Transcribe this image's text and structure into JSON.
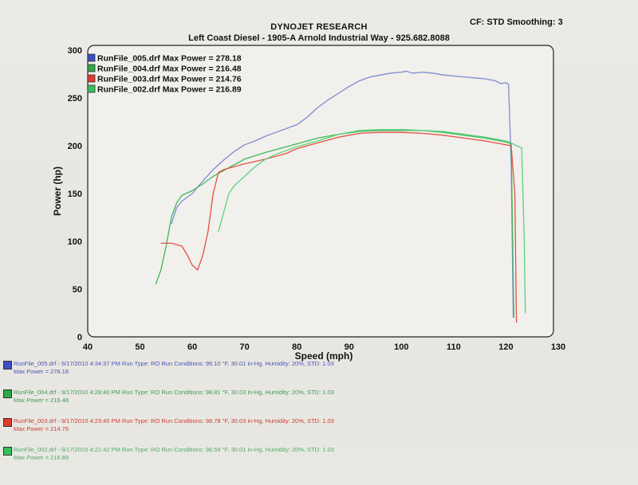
{
  "header": {
    "title": "DYNOJET RESEARCH",
    "subtitle": "Left Coast Diesel - 1905-A Arnold Industrial Way - 925.682.8088",
    "cf_info": "CF: STD  Smoothing: 3"
  },
  "chart_data": {
    "type": "line",
    "xlabel": "Speed (mph)",
    "ylabel": "Power (hp)",
    "xlim": [
      40,
      130
    ],
    "ylim": [
      0,
      300
    ],
    "x_ticks": [
      40,
      50,
      60,
      70,
      80,
      90,
      100,
      110,
      120,
      130
    ],
    "y_ticks": [
      0,
      50,
      100,
      150,
      200,
      250,
      300
    ],
    "grid": false,
    "legend_position": "top-left",
    "series": [
      {
        "name": "RunFile_005.drf Max Power = 278.18",
        "color": "#7f8bd0",
        "points": [
          [
            56,
            118
          ],
          [
            57,
            135
          ],
          [
            58,
            142
          ],
          [
            60,
            150
          ],
          [
            62,
            163
          ],
          [
            64,
            175
          ],
          [
            66,
            185
          ],
          [
            68,
            194
          ],
          [
            70,
            201
          ],
          [
            72,
            205
          ],
          [
            74,
            210
          ],
          [
            76,
            214
          ],
          [
            78,
            218
          ],
          [
            80,
            222
          ],
          [
            82,
            230
          ],
          [
            84,
            240
          ],
          [
            86,
            248
          ],
          [
            88,
            255
          ],
          [
            90,
            262
          ],
          [
            92,
            268
          ],
          [
            94,
            272
          ],
          [
            96,
            274
          ],
          [
            98,
            276
          ],
          [
            100,
            277
          ],
          [
            101,
            278
          ],
          [
            102,
            276
          ],
          [
            104,
            277
          ],
          [
            106,
            276
          ],
          [
            108,
            274
          ],
          [
            110,
            273
          ],
          [
            112,
            272
          ],
          [
            114,
            271
          ],
          [
            116,
            270
          ],
          [
            118,
            268
          ],
          [
            119,
            265
          ],
          [
            120,
            266
          ],
          [
            120.5,
            264
          ],
          [
            121,
            180
          ],
          [
            121.4,
            20
          ]
        ]
      },
      {
        "name": "RunFile_004.drf Max Power = 216.48",
        "color": "#3fb859",
        "points": [
          [
            53,
            55
          ],
          [
            54,
            70
          ],
          [
            55,
            95
          ],
          [
            56,
            125
          ],
          [
            57,
            140
          ],
          [
            58,
            148
          ],
          [
            60,
            153
          ],
          [
            62,
            160
          ],
          [
            64,
            168
          ],
          [
            66,
            174
          ],
          [
            68,
            180
          ],
          [
            70,
            186
          ],
          [
            74,
            193
          ],
          [
            78,
            199
          ],
          [
            80,
            202
          ],
          [
            84,
            208
          ],
          [
            88,
            212
          ],
          [
            92,
            215
          ],
          [
            96,
            216
          ],
          [
            100,
            216
          ],
          [
            104,
            216
          ],
          [
            108,
            214
          ],
          [
            112,
            211
          ],
          [
            116,
            208
          ],
          [
            118,
            206
          ],
          [
            120,
            204
          ],
          [
            121,
            202
          ],
          [
            121.5,
            20
          ]
        ]
      },
      {
        "name": "RunFile_003.drf Max Power = 214.76",
        "color": "#e45145",
        "points": [
          [
            54,
            98
          ],
          [
            56,
            98
          ],
          [
            58,
            95
          ],
          [
            59,
            86
          ],
          [
            60,
            75
          ],
          [
            61,
            70
          ],
          [
            62,
            85
          ],
          [
            63,
            110
          ],
          [
            64,
            150
          ],
          [
            65,
            172
          ],
          [
            66,
            175
          ],
          [
            68,
            178
          ],
          [
            70,
            181
          ],
          [
            74,
            186
          ],
          [
            78,
            192
          ],
          [
            80,
            197
          ],
          [
            84,
            203
          ],
          [
            88,
            209
          ],
          [
            92,
            213
          ],
          [
            96,
            214
          ],
          [
            100,
            214
          ],
          [
            104,
            213
          ],
          [
            108,
            211
          ],
          [
            112,
            208
          ],
          [
            116,
            205
          ],
          [
            118,
            203
          ],
          [
            119,
            202
          ],
          [
            120,
            201
          ],
          [
            121,
            200
          ],
          [
            121.7,
            150
          ],
          [
            122,
            15
          ]
        ]
      },
      {
        "name": "RunFile_002.drf Max Power = 216.89",
        "color": "#5cd27c",
        "points": [
          [
            65,
            110
          ],
          [
            66,
            130
          ],
          [
            67,
            150
          ],
          [
            68,
            158
          ],
          [
            70,
            168
          ],
          [
            72,
            178
          ],
          [
            74,
            186
          ],
          [
            76,
            191
          ],
          [
            78,
            195
          ],
          [
            80,
            199
          ],
          [
            84,
            205
          ],
          [
            88,
            212
          ],
          [
            92,
            216
          ],
          [
            96,
            217
          ],
          [
            100,
            217
          ],
          [
            104,
            216
          ],
          [
            108,
            215
          ],
          [
            112,
            212
          ],
          [
            116,
            209
          ],
          [
            118,
            207
          ],
          [
            120,
            205
          ],
          [
            121,
            203
          ],
          [
            122,
            200
          ],
          [
            123,
            198
          ],
          [
            123.5,
            100
          ],
          [
            123.7,
            25
          ]
        ]
      }
    ]
  },
  "runs": [
    {
      "color": "#3b4fc4",
      "line1": "RunFile_005.drf - 9/17/2010 4:34:37 PM  Run Type: RO  Run Conditions: 99.10 °F, 30.01 in-Hg,  Humidity: 20%, STD: 1.03",
      "line2": "Max Power = 278.18",
      "text_color": "#4a55b8"
    },
    {
      "color": "#2ea84a",
      "line1": "RunFile_004.drf - 9/17/2010 4:28:40 PM  Run Type: RO  Run Conditions: 98.81 °F, 30.03 in-Hg,  Humidity: 20%, STD: 1.03",
      "line2": "Max Power = 216.48",
      "text_color": "#3f9a55"
    },
    {
      "color": "#e03a2e",
      "line1": "RunFile_003.drf - 9/17/2010 4:23:40 PM  Run Type: RO  Run Conditions: 98.78 °F, 30.03 in-Hg,  Humidity: 20%, STD: 1.03",
      "line2": "Max Power = 214.76",
      "text_color": "#cf3b33"
    },
    {
      "color": "#35c25a",
      "line1": "RunFile_002.drf - 9/17/2010 4:21:42 PM  Run Type: RO  Run Conditions: 98.59 °F, 30.01 in-Hg,  Humidity: 20%, STD: 1.03",
      "line2": "Max Power = 216.89",
      "text_color": "#4fae66"
    }
  ]
}
